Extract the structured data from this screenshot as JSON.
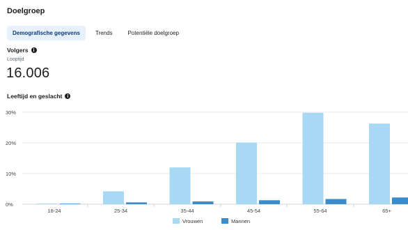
{
  "header": {
    "title": "Doelgroep"
  },
  "tabs": [
    {
      "label": "Demografische gegevens",
      "active": true
    },
    {
      "label": "Trends",
      "active": false
    },
    {
      "label": "Potentiële doelgroep",
      "active": false
    }
  ],
  "followers": {
    "label": "Volgers",
    "period": "Looptijd",
    "count": "16.006"
  },
  "chart_section": {
    "label": "Leeftijd en geslacht"
  },
  "icons": {
    "info": "info-icon"
  },
  "colors": {
    "women": "#a8d8f4",
    "men": "#3b8ccb",
    "active_tab_bg": "#e7f0fd"
  },
  "chart_data": {
    "type": "bar",
    "categories": [
      "18-24",
      "25-34",
      "35-44",
      "45-54",
      "55-64",
      "65+"
    ],
    "series": [
      {
        "name": "Vrouwen",
        "values": [
          0.2,
          4.2,
          12,
          20.1,
          29.8,
          26.3
        ]
      },
      {
        "name": "Mannen",
        "values": [
          0.1,
          0.6,
          0.9,
          1.3,
          1.7,
          2.2
        ]
      }
    ],
    "ylim": [
      0,
      30
    ],
    "yticks": [
      "0%",
      "10%",
      "20%",
      "30%"
    ],
    "grid": true,
    "legend_position": "bottom-center"
  }
}
